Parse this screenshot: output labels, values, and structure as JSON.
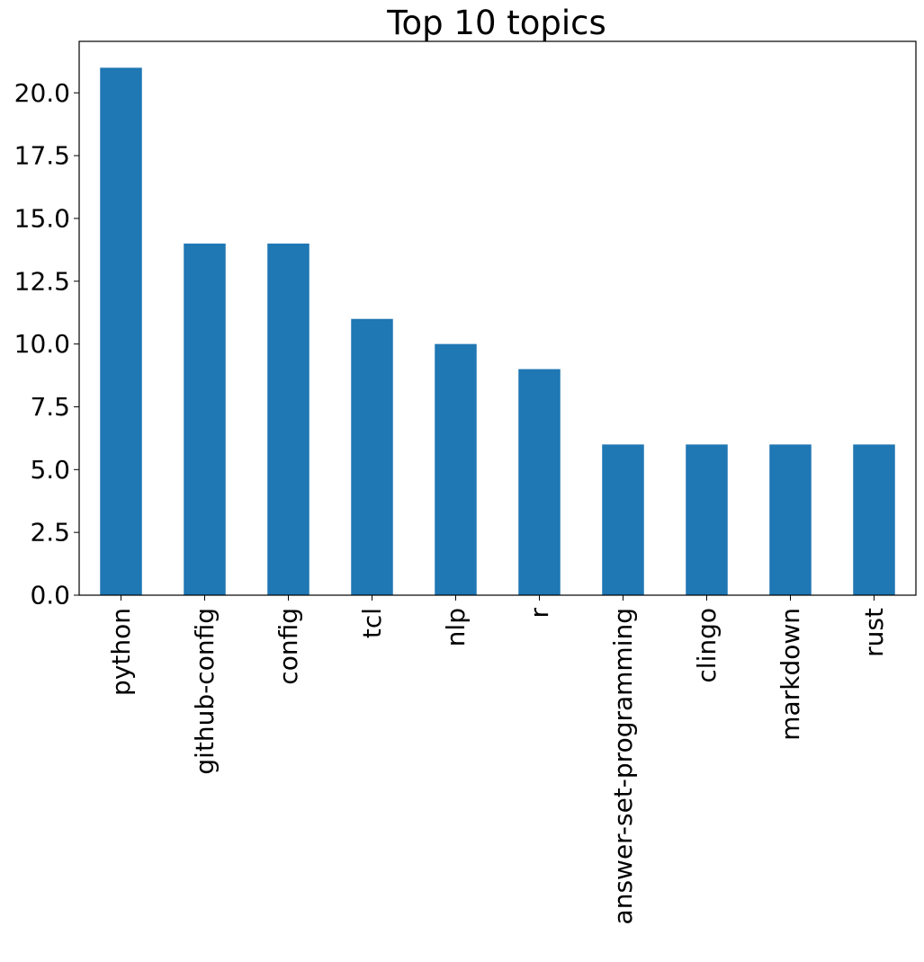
{
  "chart_data": {
    "type": "bar",
    "title": "Top 10 topics",
    "xlabel": "",
    "ylabel": "",
    "categories": [
      "python",
      "github-config",
      "config",
      "tcl",
      "nlp",
      "r",
      "answer-set-programming",
      "clingo",
      "markdown",
      "rust"
    ],
    "values": [
      21,
      14,
      14,
      11,
      10,
      9,
      6,
      6,
      6,
      6
    ],
    "ylim": [
      0,
      22.05
    ],
    "yticks": [
      "0.0",
      "2.5",
      "5.0",
      "7.5",
      "10.0",
      "12.5",
      "15.0",
      "17.5",
      "20.0"
    ],
    "bar_color": "#1f77b4",
    "grid": false,
    "legend": "none"
  }
}
